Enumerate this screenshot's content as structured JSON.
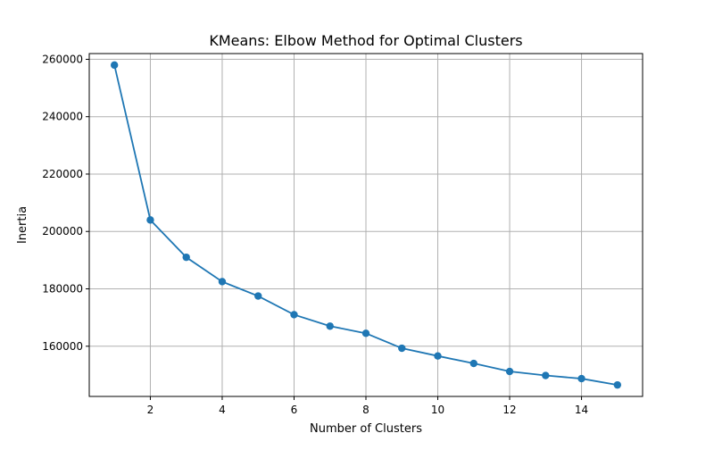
{
  "chart_data": {
    "type": "line",
    "title": "KMeans: Elbow Method for Optimal Clusters",
    "xlabel": "Number of Clusters",
    "ylabel": "Inertia",
    "x": [
      1,
      2,
      3,
      4,
      5,
      6,
      7,
      8,
      9,
      10,
      11,
      12,
      13,
      14,
      15
    ],
    "y": [
      258000,
      204000,
      191000,
      182500,
      177500,
      171000,
      167000,
      164500,
      159300,
      156600,
      154000,
      151200,
      149800,
      148700,
      146500
    ],
    "xlim": [
      0.3,
      15.7
    ],
    "ylim": [
      142500,
      262000
    ],
    "xticks": [
      2,
      4,
      6,
      8,
      10,
      12,
      14
    ],
    "xtick_labels": [
      "2",
      "4",
      "6",
      "8",
      "10",
      "12",
      "14"
    ],
    "yticks": [
      160000,
      180000,
      200000,
      220000,
      240000,
      260000
    ],
    "ytick_labels": [
      "160000",
      "180000",
      "200000",
      "220000",
      "240000",
      "260000"
    ],
    "grid": true,
    "marker": "circle",
    "color": "#1f77b4"
  }
}
